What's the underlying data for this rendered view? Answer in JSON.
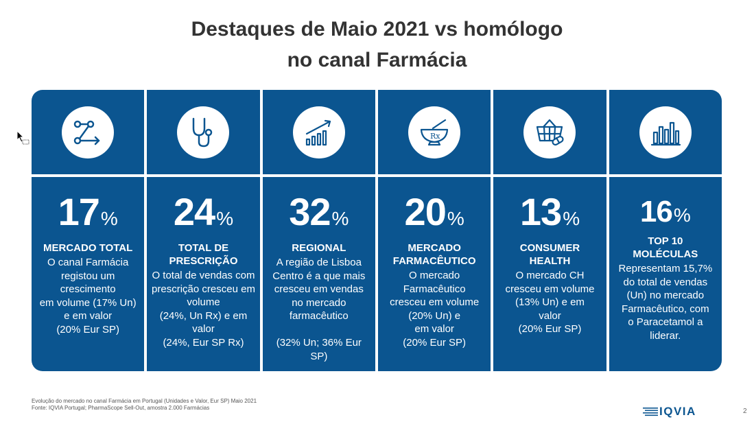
{
  "title": {
    "line1": "Destaques de Maio 2021 vs homólogo",
    "line2": "no canal Farmácia"
  },
  "cards": [
    {
      "icon": "share-nodes-icon",
      "value": "17",
      "unit": "%",
      "label": "MERCADO TOTAL",
      "desc": "O canal Farmácia\nregistou um\ncrescimento\nem volume (17% Un)\ne em valor\n(20% Eur SP)"
    },
    {
      "icon": "stethoscope-icon",
      "value": "24",
      "unit": "%",
      "label": "TOTAL DE\nPRESCRIÇÃO",
      "desc": "O total de vendas com\nprescrição cresceu em\nvolume\n(24%, Un Rx) e em\nvalor\n(24%, Eur SP Rx)"
    },
    {
      "icon": "growth-chart-icon",
      "value": "32",
      "unit": "%",
      "label": "REGIONAL",
      "desc": "A região de Lisboa\nCentro é a que mais\ncresceu em vendas\nno mercado\nfarmacêutico\n\n(32% Un; 36% Eur\nSP)"
    },
    {
      "icon": "mortar-pestle-rx-icon",
      "value": "20",
      "unit": "%",
      "label": "MERCADO\nFARMACÊUTICO",
      "desc": "O mercado\nFarmacêutico\ncresceu em volume\n(20% Un) e\nem valor\n(20% Eur SP)"
    },
    {
      "icon": "basket-pill-icon",
      "value": "13",
      "unit": "%",
      "label": "CONSUMER\nHEALTH",
      "desc": "O mercado CH\ncresceu em volume\n(13% Un) e em\nvalor\n(20% Eur SP)"
    },
    {
      "icon": "bar-chart-icon",
      "value": "16",
      "unit": "%",
      "label": "TOP 10\nMOLÉCULAS",
      "desc": "Representam 15,7%\ndo total de vendas\n(Un) no mercado\nFarmacêutico, com\no Paracetamol a\nliderar."
    }
  ],
  "footnote": {
    "line1": "Evolução do mercado no canal Farmácia em Portugal (Unidades e Valor, Eur SP) Maio 2021",
    "line2": "Fonte: IQVIA Portugal; PharmaScope Sell-Out, amostra 2.000 Farmácias"
  },
  "logo": "IQVIA",
  "page_number": "2",
  "colors": {
    "primary": "#0b5590",
    "text": "#333333"
  }
}
